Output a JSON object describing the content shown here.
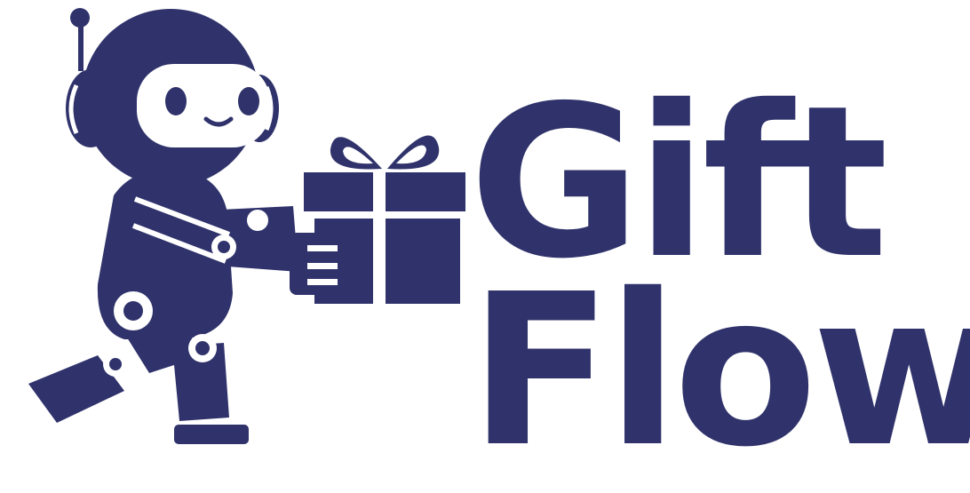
{
  "brand": {
    "line1": "Gift",
    "line2": "Flow",
    "color": "#30336b",
    "background": "#ffffff"
  },
  "icons": {
    "mascot": "robot-carrying-gift-icon",
    "gift": "gift-box-icon"
  }
}
